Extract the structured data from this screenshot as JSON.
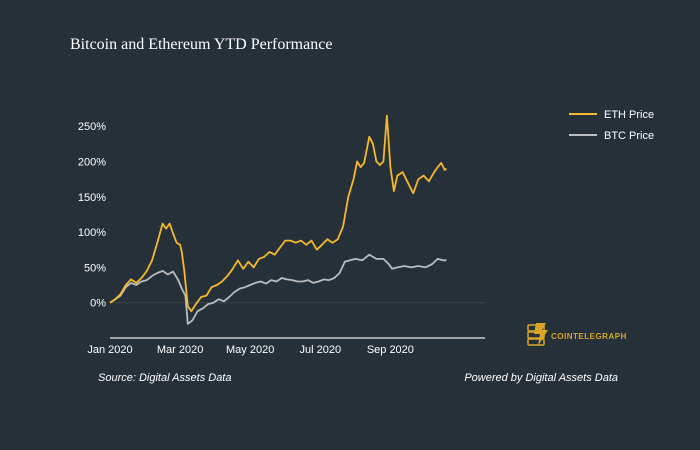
{
  "colors": {
    "background": "#263038",
    "eth": "#f5b82e",
    "btc": "#b9bcbe",
    "text": "#ffffff",
    "gridline": "#3a444c",
    "axis": "#c8cbcc",
    "logo": "#d9a62a"
  },
  "footer": {
    "source": "Source: Digital Assets Data",
    "powered": "Powered by Digital Assets Data"
  },
  "logo": {
    "text": "COINTELEGRAPH",
    "icon": "cointelegraph-logo-icon"
  },
  "chart_data": {
    "type": "line",
    "title": "Bitcoin and Ethereum YTD Performance",
    "xlabel": "",
    "ylabel": "",
    "xlim": [
      0,
      10.7
    ],
    "ylim": [
      -0.5,
      2.8
    ],
    "x_ticks": [
      {
        "value": 0,
        "label": "Jan 2020"
      },
      {
        "value": 2,
        "label": "Mar 2020"
      },
      {
        "value": 4,
        "label": "May 2020"
      },
      {
        "value": 6,
        "label": "Jul 2020"
      },
      {
        "value": 8,
        "label": "Sep 2020"
      }
    ],
    "y_ticks": [
      {
        "value": 0,
        "label": "0%"
      },
      {
        "value": 0.5,
        "label": "50%"
      },
      {
        "value": 1.0,
        "label": "100%"
      },
      {
        "value": 1.5,
        "label": "150%"
      },
      {
        "value": 2.0,
        "label": "200%"
      },
      {
        "value": 2.5,
        "label": "250%"
      }
    ],
    "legend_position": "top-right",
    "series": [
      {
        "name": "ETH Price",
        "color_key": "eth",
        "points": [
          [
            0,
            0
          ],
          [
            0.15,
            0.05
          ],
          [
            0.3,
            0.12
          ],
          [
            0.45,
            0.25
          ],
          [
            0.6,
            0.33
          ],
          [
            0.75,
            0.28
          ],
          [
            0.9,
            0.35
          ],
          [
            1.05,
            0.45
          ],
          [
            1.2,
            0.6
          ],
          [
            1.35,
            0.85
          ],
          [
            1.5,
            1.12
          ],
          [
            1.6,
            1.05
          ],
          [
            1.7,
            1.12
          ],
          [
            1.8,
            0.98
          ],
          [
            1.9,
            0.85
          ],
          [
            2.0,
            0.82
          ],
          [
            2.05,
            0.72
          ],
          [
            2.12,
            0.45
          ],
          [
            2.22,
            -0.05
          ],
          [
            2.32,
            -0.12
          ],
          [
            2.45,
            -0.02
          ],
          [
            2.6,
            0.08
          ],
          [
            2.75,
            0.1
          ],
          [
            2.9,
            0.22
          ],
          [
            3.05,
            0.25
          ],
          [
            3.2,
            0.3
          ],
          [
            3.35,
            0.38
          ],
          [
            3.5,
            0.48
          ],
          [
            3.65,
            0.6
          ],
          [
            3.8,
            0.48
          ],
          [
            3.95,
            0.58
          ],
          [
            4.1,
            0.5
          ],
          [
            4.25,
            0.62
          ],
          [
            4.4,
            0.65
          ],
          [
            4.55,
            0.72
          ],
          [
            4.7,
            0.68
          ],
          [
            4.85,
            0.78
          ],
          [
            5.0,
            0.88
          ],
          [
            5.15,
            0.88
          ],
          [
            5.3,
            0.85
          ],
          [
            5.45,
            0.88
          ],
          [
            5.6,
            0.82
          ],
          [
            5.75,
            0.88
          ],
          [
            5.9,
            0.75
          ],
          [
            6.05,
            0.82
          ],
          [
            6.2,
            0.9
          ],
          [
            6.35,
            0.85
          ],
          [
            6.5,
            0.9
          ],
          [
            6.65,
            1.08
          ],
          [
            6.8,
            1.5
          ],
          [
            6.95,
            1.75
          ],
          [
            7.05,
            2.0
          ],
          [
            7.15,
            1.92
          ],
          [
            7.25,
            1.98
          ],
          [
            7.4,
            2.35
          ],
          [
            7.5,
            2.25
          ],
          [
            7.6,
            2.0
          ],
          [
            7.7,
            1.95
          ],
          [
            7.8,
            2.0
          ],
          [
            7.9,
            2.65
          ],
          [
            8.0,
            1.92
          ],
          [
            8.1,
            1.58
          ],
          [
            8.2,
            1.8
          ],
          [
            8.35,
            1.85
          ],
          [
            8.5,
            1.7
          ],
          [
            8.65,
            1.55
          ],
          [
            8.8,
            1.75
          ],
          [
            8.95,
            1.8
          ],
          [
            9.1,
            1.72
          ],
          [
            9.25,
            1.85
          ],
          [
            9.35,
            1.92
          ],
          [
            9.45,
            1.98
          ],
          [
            9.55,
            1.88
          ],
          [
            9.6,
            1.9
          ]
        ]
      },
      {
        "name": "BTC Price",
        "color_key": "btc",
        "points": [
          [
            0,
            0
          ],
          [
            0.15,
            0.05
          ],
          [
            0.3,
            0.1
          ],
          [
            0.45,
            0.22
          ],
          [
            0.6,
            0.28
          ],
          [
            0.75,
            0.25
          ],
          [
            0.9,
            0.3
          ],
          [
            1.05,
            0.32
          ],
          [
            1.2,
            0.38
          ],
          [
            1.35,
            0.42
          ],
          [
            1.5,
            0.45
          ],
          [
            1.65,
            0.4
          ],
          [
            1.8,
            0.44
          ],
          [
            1.95,
            0.32
          ],
          [
            2.05,
            0.2
          ],
          [
            2.15,
            0.1
          ],
          [
            2.22,
            -0.3
          ],
          [
            2.35,
            -0.25
          ],
          [
            2.5,
            -0.12
          ],
          [
            2.65,
            -0.08
          ],
          [
            2.8,
            -0.02
          ],
          [
            2.95,
            0.0
          ],
          [
            3.1,
            0.05
          ],
          [
            3.25,
            0.02
          ],
          [
            3.4,
            0.08
          ],
          [
            3.55,
            0.15
          ],
          [
            3.7,
            0.2
          ],
          [
            3.85,
            0.22
          ],
          [
            4.0,
            0.25
          ],
          [
            4.15,
            0.28
          ],
          [
            4.3,
            0.3
          ],
          [
            4.45,
            0.27
          ],
          [
            4.6,
            0.32
          ],
          [
            4.75,
            0.3
          ],
          [
            4.9,
            0.35
          ],
          [
            5.05,
            0.33
          ],
          [
            5.2,
            0.32
          ],
          [
            5.35,
            0.3
          ],
          [
            5.5,
            0.3
          ],
          [
            5.65,
            0.32
          ],
          [
            5.8,
            0.28
          ],
          [
            5.95,
            0.3
          ],
          [
            6.1,
            0.33
          ],
          [
            6.25,
            0.32
          ],
          [
            6.4,
            0.35
          ],
          [
            6.55,
            0.42
          ],
          [
            6.7,
            0.58
          ],
          [
            6.85,
            0.6
          ],
          [
            7.0,
            0.62
          ],
          [
            7.2,
            0.6
          ],
          [
            7.4,
            0.68
          ],
          [
            7.6,
            0.62
          ],
          [
            7.8,
            0.62
          ],
          [
            7.95,
            0.55
          ],
          [
            8.05,
            0.48
          ],
          [
            8.2,
            0.5
          ],
          [
            8.4,
            0.52
          ],
          [
            8.6,
            0.5
          ],
          [
            8.8,
            0.52
          ],
          [
            9.0,
            0.5
          ],
          [
            9.2,
            0.55
          ],
          [
            9.35,
            0.62
          ],
          [
            9.5,
            0.6
          ],
          [
            9.6,
            0.6
          ]
        ]
      }
    ]
  }
}
